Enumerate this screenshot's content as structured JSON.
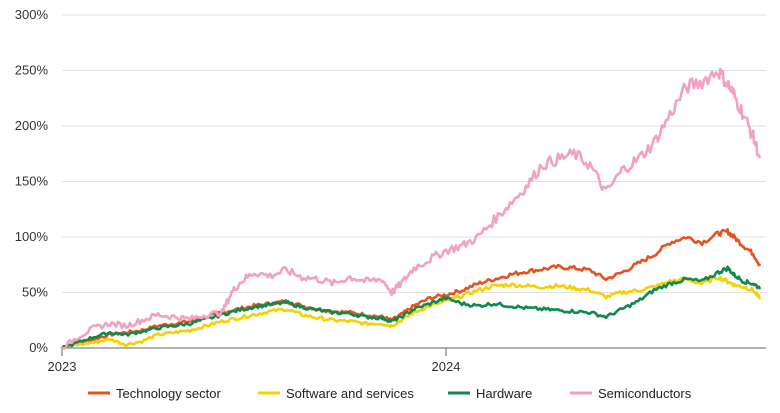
{
  "chart_data": {
    "type": "line",
    "title": "",
    "xlabel": "",
    "ylabel": "",
    "ylim": [
      0,
      300
    ],
    "x_range": [
      "2023-01",
      "2024-12"
    ],
    "y_ticks": [
      "0%",
      "50%",
      "100%",
      "150%",
      "200%",
      "250%",
      "300%"
    ],
    "y_tick_values": [
      0,
      50,
      100,
      150,
      200,
      250,
      300
    ],
    "x_ticks": [
      "2023",
      "2024"
    ],
    "x_tick_values": [
      0,
      12
    ],
    "grid": "horizontal",
    "legend_position": "bottom",
    "x_unit": "months since Jan 2023",
    "series": [
      {
        "name": "Technology sector",
        "color": "#e4541e",
        "points": [
          [
            0,
            0
          ],
          [
            0.5,
            5
          ],
          [
            1,
            8
          ],
          [
            1.5,
            12
          ],
          [
            2,
            14
          ],
          [
            2.5,
            16
          ],
          [
            3,
            20
          ],
          [
            3.5,
            22
          ],
          [
            4,
            24
          ],
          [
            4.5,
            28
          ],
          [
            5,
            32
          ],
          [
            5.5,
            35
          ],
          [
            6,
            38
          ],
          [
            6.5,
            40
          ],
          [
            7,
            42
          ],
          [
            7.5,
            38
          ],
          [
            8,
            35
          ],
          [
            8.5,
            33
          ],
          [
            9,
            32
          ],
          [
            9.5,
            30
          ],
          [
            10,
            28
          ],
          [
            10.3,
            25
          ],
          [
            10.6,
            30
          ],
          [
            11,
            38
          ],
          [
            11.5,
            45
          ],
          [
            12,
            48
          ],
          [
            12.5,
            52
          ],
          [
            13,
            58
          ],
          [
            13.5,
            62
          ],
          [
            14,
            66
          ],
          [
            14.5,
            69
          ],
          [
            15,
            71
          ],
          [
            15.5,
            73
          ],
          [
            16,
            72
          ],
          [
            16.5,
            70
          ],
          [
            17,
            62
          ],
          [
            17.5,
            68
          ],
          [
            18,
            76
          ],
          [
            18.5,
            84
          ],
          [
            19,
            95
          ],
          [
            19.5,
            100
          ],
          [
            20,
            95
          ],
          [
            20.5,
            103
          ],
          [
            20.8,
            105
          ],
          [
            21,
            100
          ],
          [
            21.3,
            92
          ],
          [
            21.6,
            85
          ],
          [
            21.8,
            75
          ]
        ]
      },
      {
        "name": "Software and services",
        "color": "#f6d000",
        "points": [
          [
            0,
            0
          ],
          [
            0.5,
            3
          ],
          [
            1,
            5
          ],
          [
            1.5,
            8
          ],
          [
            2,
            3
          ],
          [
            2.5,
            6
          ],
          [
            3,
            12
          ],
          [
            3.5,
            14
          ],
          [
            4,
            16
          ],
          [
            4.5,
            20
          ],
          [
            5,
            24
          ],
          [
            5.5,
            27
          ],
          [
            6,
            30
          ],
          [
            6.5,
            33
          ],
          [
            7,
            35
          ],
          [
            7.5,
            30
          ],
          [
            8,
            27
          ],
          [
            8.5,
            25
          ],
          [
            9,
            24
          ],
          [
            9.5,
            22
          ],
          [
            10,
            22
          ],
          [
            10.3,
            20
          ],
          [
            10.6,
            25
          ],
          [
            11,
            32
          ],
          [
            11.5,
            38
          ],
          [
            12,
            42
          ],
          [
            12.5,
            47
          ],
          [
            13,
            52
          ],
          [
            13.5,
            56
          ],
          [
            14,
            57
          ],
          [
            14.5,
            56
          ],
          [
            15,
            55
          ],
          [
            15.5,
            56
          ],
          [
            16,
            54
          ],
          [
            16.5,
            52
          ],
          [
            17,
            46
          ],
          [
            17.5,
            50
          ],
          [
            18,
            52
          ],
          [
            18.5,
            55
          ],
          [
            19,
            60
          ],
          [
            19.5,
            62
          ],
          [
            20,
            58
          ],
          [
            20.5,
            64
          ],
          [
            20.8,
            60
          ],
          [
            21,
            57
          ],
          [
            21.3,
            55
          ],
          [
            21.6,
            52
          ],
          [
            21.8,
            45
          ]
        ]
      },
      {
        "name": "Hardware",
        "color": "#0f8a4e",
        "points": [
          [
            0,
            0
          ],
          [
            0.5,
            5
          ],
          [
            1,
            10
          ],
          [
            1.5,
            14
          ],
          [
            2,
            12
          ],
          [
            2.5,
            15
          ],
          [
            3,
            18
          ],
          [
            3.5,
            20
          ],
          [
            4,
            22
          ],
          [
            4.5,
            26
          ],
          [
            5,
            30
          ],
          [
            5.5,
            34
          ],
          [
            6,
            37
          ],
          [
            6.5,
            39
          ],
          [
            7,
            41
          ],
          [
            7.5,
            37
          ],
          [
            8,
            34
          ],
          [
            8.5,
            32
          ],
          [
            9,
            31
          ],
          [
            9.5,
            28
          ],
          [
            10,
            27
          ],
          [
            10.3,
            24
          ],
          [
            10.6,
            28
          ],
          [
            11,
            35
          ],
          [
            11.5,
            40
          ],
          [
            12,
            45
          ],
          [
            12.5,
            40
          ],
          [
            13,
            38
          ],
          [
            13.5,
            40
          ],
          [
            14,
            38
          ],
          [
            14.5,
            36
          ],
          [
            15,
            35
          ],
          [
            15.5,
            34
          ],
          [
            16,
            33
          ],
          [
            16.5,
            32
          ],
          [
            17,
            28
          ],
          [
            17.5,
            35
          ],
          [
            18,
            42
          ],
          [
            18.5,
            52
          ],
          [
            19,
            58
          ],
          [
            19.5,
            62
          ],
          [
            20,
            60
          ],
          [
            20.5,
            68
          ],
          [
            20.8,
            72
          ],
          [
            21,
            66
          ],
          [
            21.3,
            60
          ],
          [
            21.6,
            58
          ],
          [
            21.8,
            54
          ]
        ]
      },
      {
        "name": "Semiconductors",
        "color": "#f2a2c0",
        "points": [
          [
            0,
            0
          ],
          [
            0.5,
            10
          ],
          [
            1,
            18
          ],
          [
            1.5,
            22
          ],
          [
            2,
            20
          ],
          [
            2.5,
            25
          ],
          [
            3,
            30
          ],
          [
            3.5,
            28
          ],
          [
            4,
            26
          ],
          [
            4.5,
            30
          ],
          [
            5,
            32
          ],
          [
            5.3,
            50
          ],
          [
            5.6,
            60
          ],
          [
            6,
            68
          ],
          [
            6.5,
            65
          ],
          [
            7,
            70
          ],
          [
            7.5,
            64
          ],
          [
            8,
            62
          ],
          [
            8.5,
            58
          ],
          [
            9,
            64
          ],
          [
            9.5,
            60
          ],
          [
            10,
            62
          ],
          [
            10.3,
            50
          ],
          [
            10.6,
            58
          ],
          [
            11,
            72
          ],
          [
            11.5,
            80
          ],
          [
            12,
            88
          ],
          [
            12.5,
            92
          ],
          [
            13,
            100
          ],
          [
            13.5,
            115
          ],
          [
            14,
            130
          ],
          [
            14.5,
            145
          ],
          [
            15,
            165
          ],
          [
            15.5,
            170
          ],
          [
            16,
            175
          ],
          [
            16.5,
            165
          ],
          [
            17,
            140
          ],
          [
            17.5,
            160
          ],
          [
            18,
            170
          ],
          [
            18.5,
            185
          ],
          [
            19,
            210
          ],
          [
            19.5,
            235
          ],
          [
            20,
            240
          ],
          [
            20.5,
            250
          ],
          [
            20.8,
            238
          ],
          [
            21,
            228
          ],
          [
            21.3,
            210
          ],
          [
            21.6,
            190
          ],
          [
            21.8,
            172
          ]
        ]
      }
    ]
  }
}
